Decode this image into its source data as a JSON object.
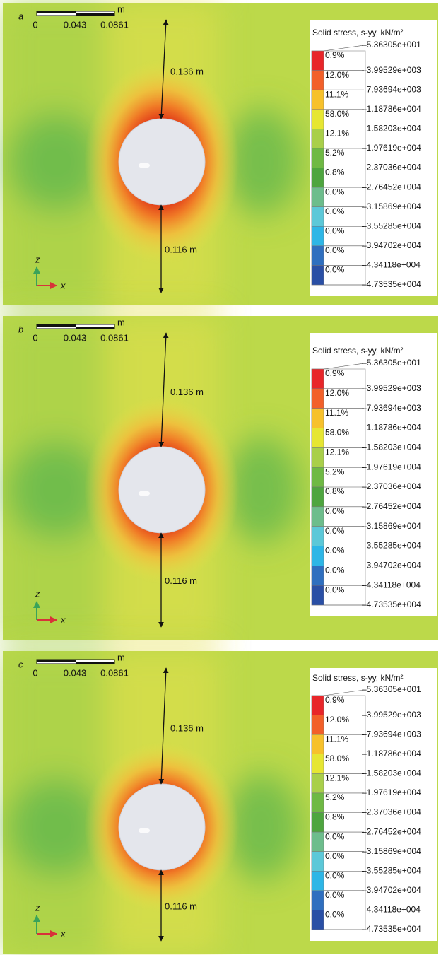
{
  "panels": [
    {
      "label": "a",
      "scale_bar": {
        "ticks": [
          "0",
          "0.043",
          "0.0861"
        ],
        "unit": "m"
      },
      "distances": [
        "0.136 m",
        "0.116 m"
      ],
      "axes": {
        "z": "z",
        "x": "x"
      },
      "legend": {
        "title": "Solid stress, s-yy, kN/m²",
        "bounds": [
          "–5.36305e+001",
          "–3.99529e+003",
          "–7.93694e+003",
          "–1.18786e+004",
          "–1.58203e+004",
          "–1.97619e+004",
          "–2.37036e+004",
          "–2.76452e+004",
          "–3.15869e+004",
          "–3.55285e+004",
          "–3.94702e+004",
          "–4.34118e+004",
          "–4.73535e+004"
        ],
        "percents": [
          "0.9%",
          "12.0%",
          "11.1%",
          "58.0%",
          "12.1%",
          "5.2%",
          "0.8%",
          "0.0%",
          "0.0%",
          "0.0%",
          "0.0%",
          "0.0%"
        ]
      }
    },
    {
      "label": "b",
      "scale_bar": {
        "ticks": [
          "0",
          "0.043",
          "0.0861"
        ],
        "unit": "m"
      },
      "distances": [
        "0.136 m",
        "0.116 m"
      ],
      "axes": {
        "z": "z",
        "x": "x"
      },
      "legend": {
        "title": "Solid stress, s-yy, kN/m²",
        "bounds": [
          "–5.36305e+001",
          "–3.99529e+003",
          "–7.93694e+003",
          "–1.18786e+004",
          "–1.58203e+004",
          "–1.97619e+004",
          "–2.37036e+004",
          "–2.76452e+004",
          "–3.15869e+004",
          "–3.55285e+004",
          "–3.94702e+004",
          "–4.34118e+004",
          "–4.73535e+004"
        ],
        "percents": [
          "0.9%",
          "12.0%",
          "11.1%",
          "58.0%",
          "12.1%",
          "5.2%",
          "0.8%",
          "0.0%",
          "0.0%",
          "0.0%",
          "0.0%",
          "0.0%"
        ]
      }
    },
    {
      "label": "c",
      "scale_bar": {
        "ticks": [
          "0",
          "0.043",
          "0.0861"
        ],
        "unit": "m"
      },
      "distances": [
        "0.136 m",
        "0.116 m"
      ],
      "axes": {
        "z": "z",
        "x": "x"
      },
      "legend": {
        "title": "Solid stress, s-yy, kN/m²",
        "bounds": [
          "–5.36305e+001",
          "–3.99529e+003",
          "–7.93694e+003",
          "–1.18786e+004",
          "–1.58203e+004",
          "–1.97619e+004",
          "–2.37036e+004",
          "–2.76452e+004",
          "–3.15869e+004",
          "–3.55285e+004",
          "–3.94702e+004",
          "–4.34118e+004",
          "–4.73535e+004"
        ],
        "percents": [
          "0.9%",
          "12.0%",
          "11.1%",
          "58.0%",
          "12.1%",
          "5.2%",
          "0.8%",
          "0.0%",
          "0.0%",
          "0.0%",
          "0.0%",
          "0.0%"
        ]
      }
    }
  ]
}
